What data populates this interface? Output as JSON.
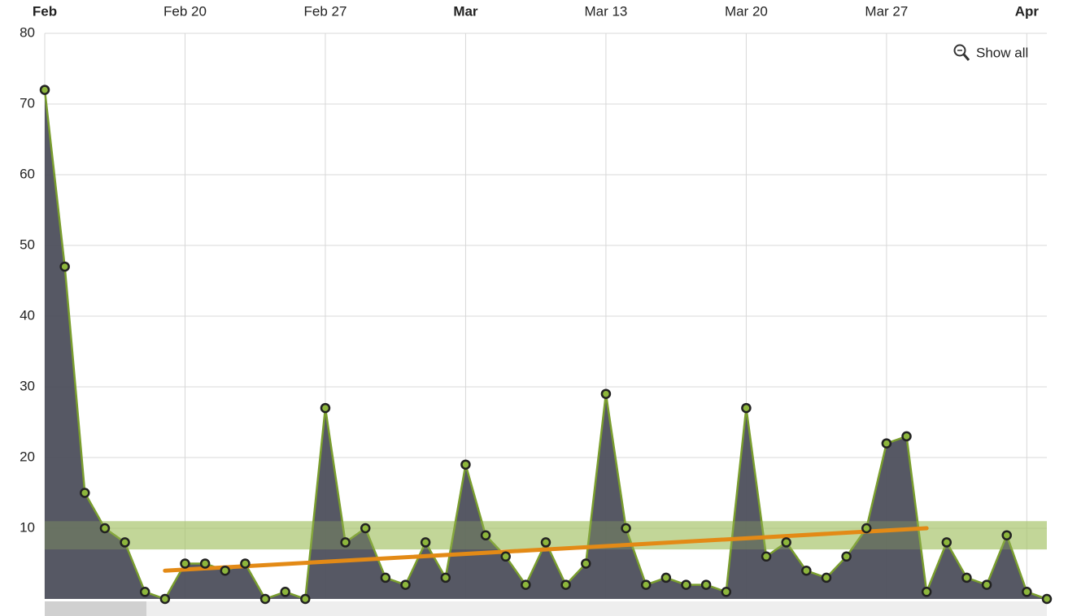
{
  "chart_data": {
    "type": "area",
    "x": [
      0,
      1,
      2,
      3,
      4,
      5,
      6,
      7,
      8,
      9,
      10,
      11,
      12,
      13,
      14,
      15,
      16,
      17,
      18,
      19,
      20,
      21,
      22,
      23,
      24,
      25,
      26,
      27,
      28,
      29,
      30,
      31,
      32,
      33,
      34,
      35,
      36,
      37,
      38,
      39,
      40,
      41,
      42,
      43,
      44,
      45,
      46,
      47,
      48,
      49,
      50
    ],
    "series": [
      {
        "color": "#4d4f5c",
        "line_color": "#7a9e2e",
        "marker_color": "#8db63c",
        "values": [
          72,
          47,
          15,
          10,
          8,
          1,
          0,
          5,
          5,
          4,
          5,
          0,
          1,
          0,
          27,
          8,
          10,
          3,
          2,
          8,
          3,
          19,
          9,
          6,
          2,
          8,
          2,
          5,
          29,
          10,
          2,
          3,
          2,
          2,
          1,
          27,
          6,
          8,
          4,
          3,
          6,
          10,
          22,
          23,
          1,
          8,
          3,
          2,
          9,
          1,
          0
        ]
      }
    ],
    "trend": {
      "x": [
        6,
        44
      ],
      "values": [
        4,
        10
      ],
      "color": "#e38a16"
    },
    "plot_band": {
      "from": 7,
      "to": 11,
      "color": "#a9c46c"
    },
    "xlim": [
      0,
      50
    ],
    "xticks": [
      {
        "value": 0,
        "label": "Feb"
      },
      {
        "value": 7,
        "label": "Feb 20"
      },
      {
        "value": 14,
        "label": "Feb 27"
      },
      {
        "value": 21,
        "label": "Mar"
      },
      {
        "value": 28,
        "label": "Mar 13"
      },
      {
        "value": 35,
        "label": "Mar 20"
      },
      {
        "value": 42,
        "label": "Mar 27"
      },
      {
        "value": 49,
        "label": "Apr"
      }
    ],
    "ylim": [
      0,
      80
    ],
    "yticks": [
      10,
      20,
      30,
      40,
      50,
      60,
      70,
      80
    ],
    "grid": true,
    "button": "Show all"
  }
}
